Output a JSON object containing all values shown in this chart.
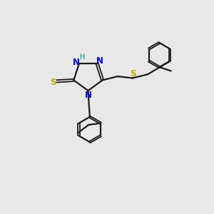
{
  "background_color": "#e8e8e8",
  "bond_color": "#1a1a1a",
  "N_color": "#0000ee",
  "S_color": "#bbaa00",
  "H_color": "#008888",
  "figsize": [
    3.0,
    3.0
  ],
  "dpi": 100,
  "xlim": [
    0,
    10
  ],
  "ylim": [
    0,
    10
  ]
}
